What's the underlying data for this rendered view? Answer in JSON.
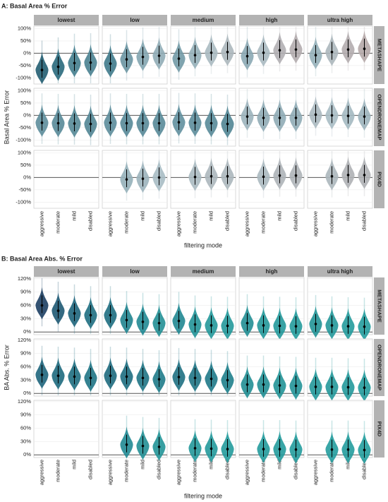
{
  "chart_data": [
    {
      "type": "violin",
      "title": "A: Basal Area % Error",
      "y_label": "Basal Area % Error",
      "x_label": "filtering mode",
      "columns": [
        "lowest",
        "low",
        "medium",
        "high",
        "ultra high"
      ],
      "rows": [
        "METASHAPE",
        "OPENDRONEMAP",
        "PIX4D"
      ],
      "categories": [
        "aggressive",
        "moderate",
        "mild",
        "disabled"
      ],
      "ylim": [
        -125,
        110
      ],
      "yticks": [
        {
          "value": -100,
          "label": "-100%"
        },
        {
          "value": -50,
          "label": "-50%"
        },
        {
          "value": 0,
          "label": "0%"
        },
        {
          "value": 50,
          "label": "50%"
        },
        {
          "value": 100,
          "label": "100%"
        }
      ],
      "color_scale": [
        "#123f57",
        "#2b6e80",
        "#a9bcc4",
        "#c9877a",
        "#b0584a"
      ],
      "values": [
        [
          [
            -68,
            -55,
            -40,
            -38
          ],
          [
            -42,
            -25,
            -15,
            -10
          ],
          [
            -22,
            -8,
            2,
            5
          ],
          [
            -12,
            2,
            12,
            15
          ],
          [
            -8,
            5,
            15,
            18
          ]
        ],
        [
          [
            -30,
            -32,
            -33,
            -35
          ],
          [
            -30,
            -32,
            -32,
            -32
          ],
          [
            -28,
            -30,
            -32,
            -35
          ],
          [
            -5,
            -10,
            -10,
            -10
          ],
          [
            3,
            0,
            -2,
            -5
          ]
        ],
        [
          [
            null,
            null,
            null,
            null
          ],
          [
            null,
            -8,
            -5,
            0
          ],
          [
            null,
            2,
            5,
            5
          ],
          [
            null,
            3,
            8,
            8
          ],
          [
            null,
            5,
            10,
            10
          ]
        ]
      ]
    },
    {
      "type": "violin",
      "title": "B: Basal Area Abs. % Error",
      "y_label": "BA Abs. % Error",
      "x_label": "filtering mode",
      "columns": [
        "lowest",
        "low",
        "medium",
        "high",
        "ultra high"
      ],
      "rows": [
        "METASHAPE",
        "OPENDRONEMAP",
        "PIX4D"
      ],
      "categories": [
        "aggressive",
        "moderate",
        "mild",
        "disabled"
      ],
      "ylim": [
        -6,
        123
      ],
      "yticks": [
        {
          "value": 0,
          "label": "0%"
        },
        {
          "value": 30,
          "label": "30%"
        },
        {
          "value": 60,
          "label": "60%"
        },
        {
          "value": 90,
          "label": "90%"
        },
        {
          "value": 120,
          "label": "120%"
        }
      ],
      "color_scale": [
        "#27b0a8",
        "#1f7f8c",
        "#1d3f63",
        "#1a1d45",
        "#150f30"
      ],
      "values": [
        [
          [
            60,
            48,
            42,
            38
          ],
          [
            38,
            27,
            23,
            20
          ],
          [
            25,
            17,
            15,
            14
          ],
          [
            20,
            15,
            14,
            13
          ],
          [
            18,
            15,
            13,
            12
          ]
        ],
        [
          [
            42,
            40,
            38,
            35
          ],
          [
            40,
            38,
            35,
            32
          ],
          [
            37,
            35,
            33,
            30
          ],
          [
            20,
            20,
            18,
            17
          ],
          [
            15,
            15,
            14,
            13
          ]
        ],
        [
          [
            null,
            null,
            null,
            null
          ],
          [
            null,
            23,
            20,
            18
          ],
          [
            null,
            15,
            14,
            13
          ],
          [
            null,
            13,
            13,
            12
          ],
          [
            null,
            12,
            12,
            11
          ]
        ]
      ]
    }
  ]
}
